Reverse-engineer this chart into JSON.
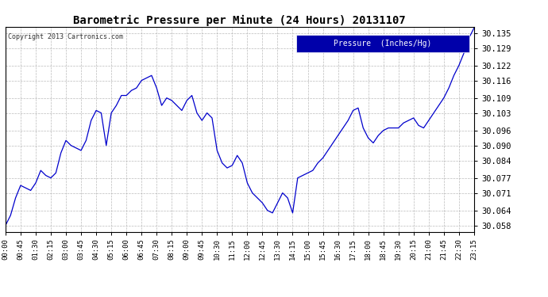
{
  "title": "Barometric Pressure per Minute (24 Hours) 20131107",
  "copyright_text": "Copyright 2013 Cartronics.com",
  "legend_label": "Pressure  (Inches/Hg)",
  "line_color": "#0000cc",
  "background_color": "#ffffff",
  "grid_color": "#aaaaaa",
  "yticks": [
    30.058,
    30.064,
    30.071,
    30.077,
    30.084,
    30.09,
    30.096,
    30.103,
    30.109,
    30.116,
    30.122,
    30.129,
    30.135
  ],
  "ylim": [
    30.0555,
    30.1375
  ],
  "xlim_max": 1395,
  "data_points": [
    [
      0,
      30.058
    ],
    [
      15,
      30.062
    ],
    [
      30,
      30.069
    ],
    [
      45,
      30.074
    ],
    [
      60,
      30.073
    ],
    [
      75,
      30.072
    ],
    [
      90,
      30.075
    ],
    [
      105,
      30.08
    ],
    [
      120,
      30.078
    ],
    [
      135,
      30.077
    ],
    [
      150,
      30.079
    ],
    [
      165,
      30.087
    ],
    [
      180,
      30.092
    ],
    [
      195,
      30.09
    ],
    [
      210,
      30.089
    ],
    [
      225,
      30.088
    ],
    [
      240,
      30.092
    ],
    [
      255,
      30.1
    ],
    [
      270,
      30.104
    ],
    [
      285,
      30.103
    ],
    [
      300,
      30.09
    ],
    [
      315,
      30.103
    ],
    [
      330,
      30.106
    ],
    [
      345,
      30.11
    ],
    [
      360,
      30.11
    ],
    [
      375,
      30.112
    ],
    [
      390,
      30.113
    ],
    [
      405,
      30.116
    ],
    [
      420,
      30.117
    ],
    [
      435,
      30.118
    ],
    [
      450,
      30.113
    ],
    [
      465,
      30.106
    ],
    [
      480,
      30.109
    ],
    [
      495,
      30.108
    ],
    [
      510,
      30.106
    ],
    [
      525,
      30.104
    ],
    [
      540,
      30.108
    ],
    [
      555,
      30.11
    ],
    [
      570,
      30.103
    ],
    [
      585,
      30.1
    ],
    [
      600,
      30.103
    ],
    [
      615,
      30.101
    ],
    [
      630,
      30.088
    ],
    [
      645,
      30.083
    ],
    [
      660,
      30.081
    ],
    [
      675,
      30.082
    ],
    [
      690,
      30.086
    ],
    [
      705,
      30.083
    ],
    [
      720,
      30.075
    ],
    [
      735,
      30.071
    ],
    [
      750,
      30.069
    ],
    [
      765,
      30.067
    ],
    [
      780,
      30.064
    ],
    [
      795,
      30.063
    ],
    [
      810,
      30.067
    ],
    [
      825,
      30.071
    ],
    [
      840,
      30.069
    ],
    [
      855,
      30.063
    ],
    [
      870,
      30.077
    ],
    [
      885,
      30.078
    ],
    [
      900,
      30.079
    ],
    [
      915,
      30.08
    ],
    [
      930,
      30.083
    ],
    [
      945,
      30.085
    ],
    [
      960,
      30.088
    ],
    [
      975,
      30.091
    ],
    [
      990,
      30.094
    ],
    [
      1005,
      30.097
    ],
    [
      1020,
      30.1
    ],
    [
      1035,
      30.104
    ],
    [
      1050,
      30.105
    ],
    [
      1065,
      30.097
    ],
    [
      1080,
      30.093
    ],
    [
      1095,
      30.091
    ],
    [
      1110,
      30.094
    ],
    [
      1125,
      30.096
    ],
    [
      1140,
      30.097
    ],
    [
      1155,
      30.097
    ],
    [
      1170,
      30.097
    ],
    [
      1185,
      30.099
    ],
    [
      1200,
      30.1
    ],
    [
      1215,
      30.101
    ],
    [
      1230,
      30.098
    ],
    [
      1245,
      30.097
    ],
    [
      1260,
      30.1
    ],
    [
      1275,
      30.103
    ],
    [
      1290,
      30.106
    ],
    [
      1305,
      30.109
    ],
    [
      1320,
      30.113
    ],
    [
      1335,
      30.118
    ],
    [
      1350,
      30.122
    ],
    [
      1365,
      30.127
    ],
    [
      1380,
      30.133
    ],
    [
      1395,
      30.137
    ]
  ]
}
